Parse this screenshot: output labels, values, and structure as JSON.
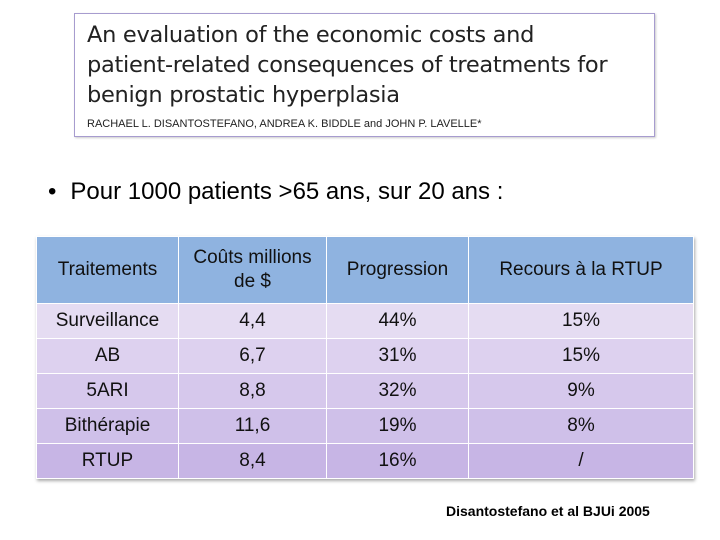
{
  "paper": {
    "title": "An evaluation of the economic costs and patient-related consequences of treatments for benign prostatic hyperplasia",
    "title_lines": [
      "An evaluation of the economic costs and",
      "patient-related consequences of treatments for",
      "benign prostatic hyperplasia"
    ],
    "authors": "RACHAEL L. DISANTOSTEFANO, ANDREA K. BIDDLE and JOHN P. LAVELLE*"
  },
  "bullet": {
    "symbol": "•",
    "text": "Pour 1000 patients >65 ans, sur 20 ans :"
  },
  "table": {
    "headers": [
      "Traitements",
      "Coûts millions de $",
      "Progression",
      "Recours à la RTUP"
    ],
    "rows": [
      [
        "Surveillance",
        "4,4",
        "44%",
        "15%"
      ],
      [
        "AB",
        "6,7",
        "31%",
        "15%"
      ],
      [
        "5ARI",
        "8,8",
        "32%",
        "9%"
      ],
      [
        "Bithérapie",
        "11,6",
        "19%",
        "8%"
      ],
      [
        "RTUP",
        "8,4",
        "16%",
        "/"
      ]
    ]
  },
  "citation": "Disantostefano et al BJUi 2005"
}
